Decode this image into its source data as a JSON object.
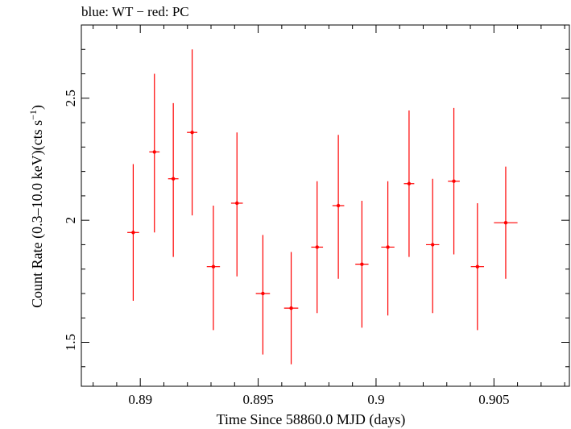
{
  "chart_data": {
    "type": "scatter",
    "title": "blue: WT − red: PC",
    "xlabel": "Time Since 58860.0 MJD (days)",
    "ylabel": "Count Rate (0.3–10.0 keV)(cts s",
    "ylabel_sup": "−1",
    "ylabel_end": ")",
    "xlim": [
      0.8875,
      0.9082
    ],
    "ylim": [
      1.32,
      2.8
    ],
    "x_ticks": [
      0.89,
      0.895,
      0.9,
      0.905
    ],
    "x_tick_labels": [
      "0.89",
      "0.895",
      "0.9",
      "0.905"
    ],
    "y_ticks": [
      1.5,
      2,
      2.5
    ],
    "y_tick_labels": [
      "1.5",
      "2",
      "2.5"
    ],
    "grid": false,
    "series": [
      {
        "color": "#ff0000",
        "points": [
          {
            "x": 0.8897,
            "y": 1.95,
            "xerr": 0.00025,
            "ylo": 1.67,
            "yhi": 2.23
          },
          {
            "x": 0.8906,
            "y": 2.28,
            "xerr": 0.00022,
            "ylo": 1.95,
            "yhi": 2.6
          },
          {
            "x": 0.8914,
            "y": 2.17,
            "xerr": 0.00022,
            "ylo": 1.85,
            "yhi": 2.48
          },
          {
            "x": 0.8922,
            "y": 2.36,
            "xerr": 0.00022,
            "ylo": 2.02,
            "yhi": 2.7
          },
          {
            "x": 0.8931,
            "y": 1.81,
            "xerr": 0.00028,
            "ylo": 1.55,
            "yhi": 2.06
          },
          {
            "x": 0.8941,
            "y": 2.07,
            "xerr": 0.00025,
            "ylo": 1.77,
            "yhi": 2.36
          },
          {
            "x": 0.8952,
            "y": 1.7,
            "xerr": 0.0003,
            "ylo": 1.45,
            "yhi": 1.94
          },
          {
            "x": 0.8964,
            "y": 1.64,
            "xerr": 0.0003,
            "ylo": 1.41,
            "yhi": 1.87
          },
          {
            "x": 0.8975,
            "y": 1.89,
            "xerr": 0.00025,
            "ylo": 1.62,
            "yhi": 2.16
          },
          {
            "x": 0.8984,
            "y": 2.06,
            "xerr": 0.00025,
            "ylo": 1.76,
            "yhi": 2.35
          },
          {
            "x": 0.8994,
            "y": 1.82,
            "xerr": 0.00028,
            "ylo": 1.56,
            "yhi": 2.08
          },
          {
            "x": 0.9005,
            "y": 1.89,
            "xerr": 0.00028,
            "ylo": 1.61,
            "yhi": 2.16
          },
          {
            "x": 0.9014,
            "y": 2.15,
            "xerr": 0.00022,
            "ylo": 1.85,
            "yhi": 2.45
          },
          {
            "x": 0.9024,
            "y": 1.9,
            "xerr": 0.00028,
            "ylo": 1.62,
            "yhi": 2.17
          },
          {
            "x": 0.9033,
            "y": 2.16,
            "xerr": 0.00025,
            "ylo": 1.86,
            "yhi": 2.46
          },
          {
            "x": 0.9043,
            "y": 1.81,
            "xerr": 0.00028,
            "ylo": 1.55,
            "yhi": 2.07
          },
          {
            "x": 0.9055,
            "y": 1.99,
            "xerr": 0.0005,
            "ylo": 1.76,
            "yhi": 2.22
          }
        ]
      }
    ]
  }
}
